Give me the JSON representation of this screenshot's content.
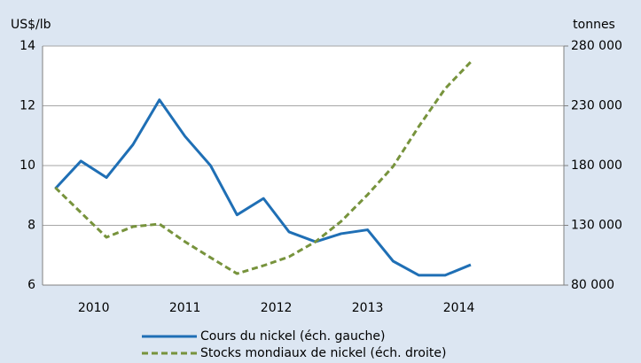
{
  "chart_data": {
    "type": "line",
    "y_label": "US$/lb",
    "y2_label": "tonnes",
    "x": [
      2010.08,
      2010.36,
      2010.64,
      2010.93,
      2011.22,
      2011.5,
      2011.78,
      2012.07,
      2012.36,
      2012.64,
      2012.93,
      2013.21,
      2013.5,
      2013.78,
      2014.06,
      2014.35,
      2014.63
    ],
    "xlim": [
      2009.94,
      2015.65
    ],
    "xticks": [
      {
        "value": 2010.5,
        "label": "2010"
      },
      {
        "value": 2011.5,
        "label": "2011"
      },
      {
        "value": 2012.5,
        "label": "2012"
      },
      {
        "value": 2013.5,
        "label": "2013"
      },
      {
        "value": 2014.5,
        "label": "2014"
      }
    ],
    "ylim": [
      6,
      14
    ],
    "yticks": [
      6,
      8,
      10,
      12,
      14
    ],
    "y2lim": [
      80000,
      280000
    ],
    "y2ticks": [
      {
        "value": 80000,
        "label": "80 000"
      },
      {
        "value": 130000,
        "label": "130 000"
      },
      {
        "value": 180000,
        "label": "180 000"
      },
      {
        "value": 230000,
        "label": "230 000"
      },
      {
        "value": 280000,
        "label": "280 000"
      }
    ],
    "grid": true,
    "series": [
      {
        "name": "Cours du nickel (éch. gauche)",
        "color": "#1f6fb5",
        "dash": false,
        "values": [
          9.23,
          10.15,
          9.6,
          10.7,
          12.2,
          10.98,
          10.0,
          8.35,
          8.9,
          7.78,
          7.45,
          7.72,
          7.85,
          6.8,
          6.33,
          6.33,
          6.68
        ]
      },
      {
        "name": "Stocks mondiaux de nickel (éch. droite)",
        "color": "#77933c",
        "dash": true,
        "axis": "y2",
        "values": [
          161500,
          140700,
          120000,
          128900,
          131100,
          116300,
          103000,
          89600,
          96300,
          103700,
          116300,
          133300,
          155600,
          179300,
          212600,
          244400,
          266700
        ]
      }
    ]
  }
}
